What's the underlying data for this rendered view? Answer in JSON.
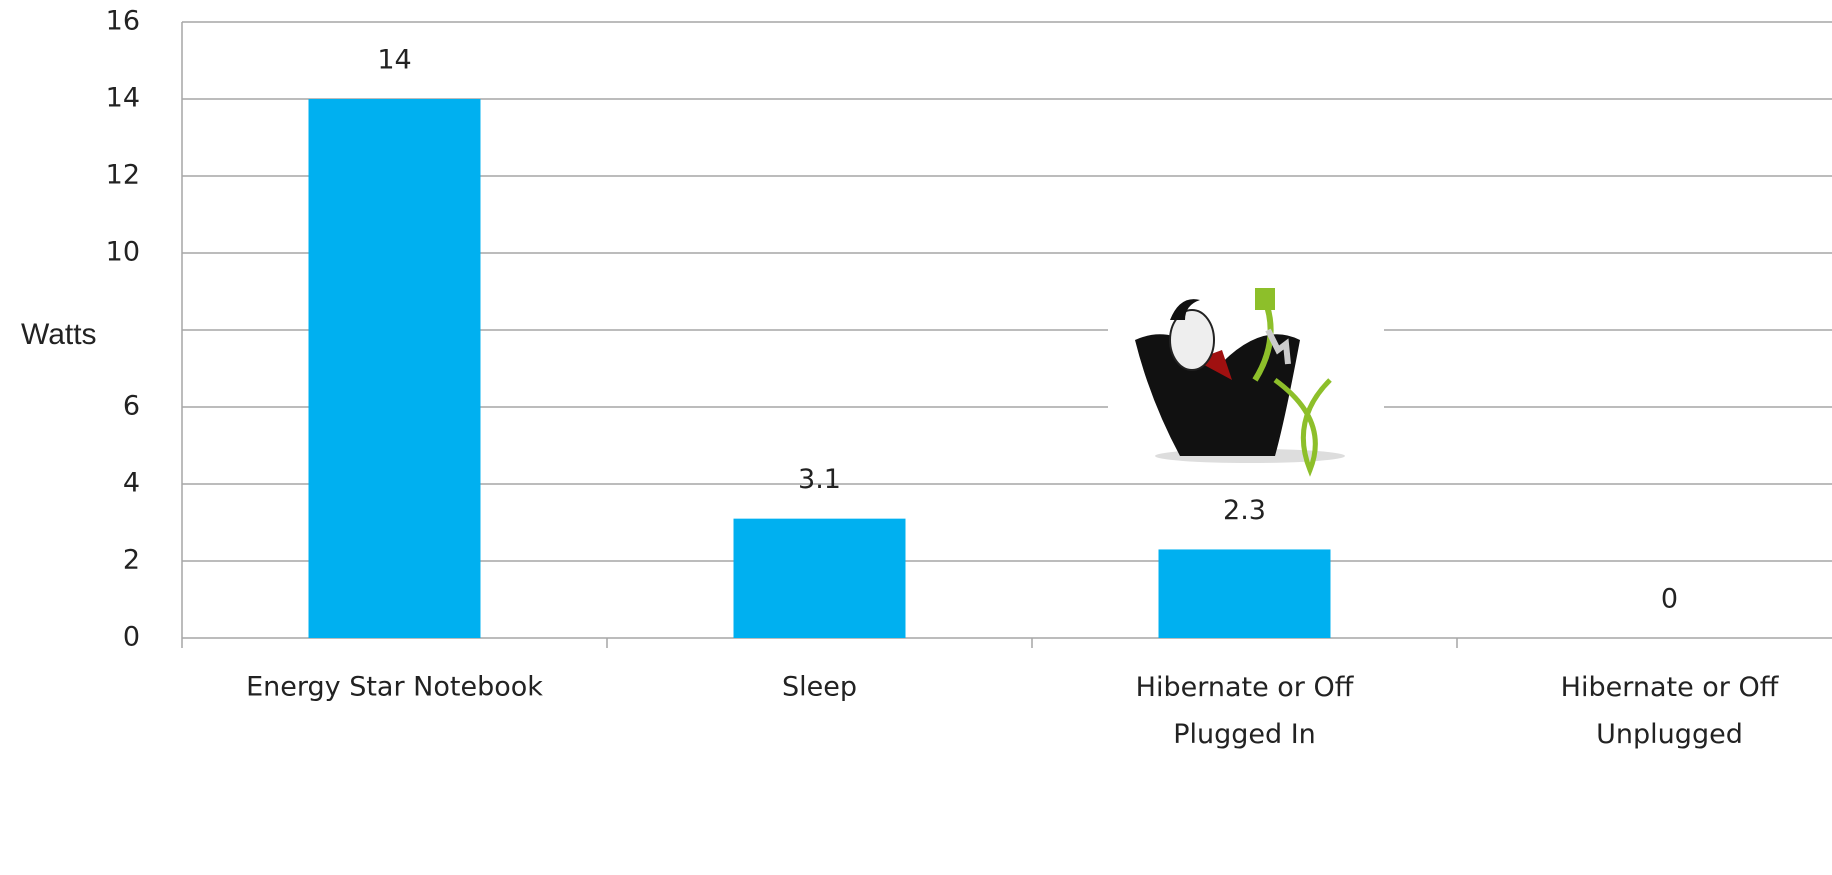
{
  "chart_data": {
    "type": "bar",
    "y_label": "Watts",
    "categories": [
      "Energy Star Notebook",
      "Sleep",
      "Hibernate or Off\nPlugged In",
      "Hibernate or Off\nUnplugged"
    ],
    "values": [
      14,
      3.1,
      2.3,
      0
    ],
    "color": "#00b0f0",
    "ylim": [
      0,
      16
    ],
    "yticks": [
      0,
      2,
      4,
      6,
      10,
      12,
      14,
      16
    ],
    "grid": true
  }
}
